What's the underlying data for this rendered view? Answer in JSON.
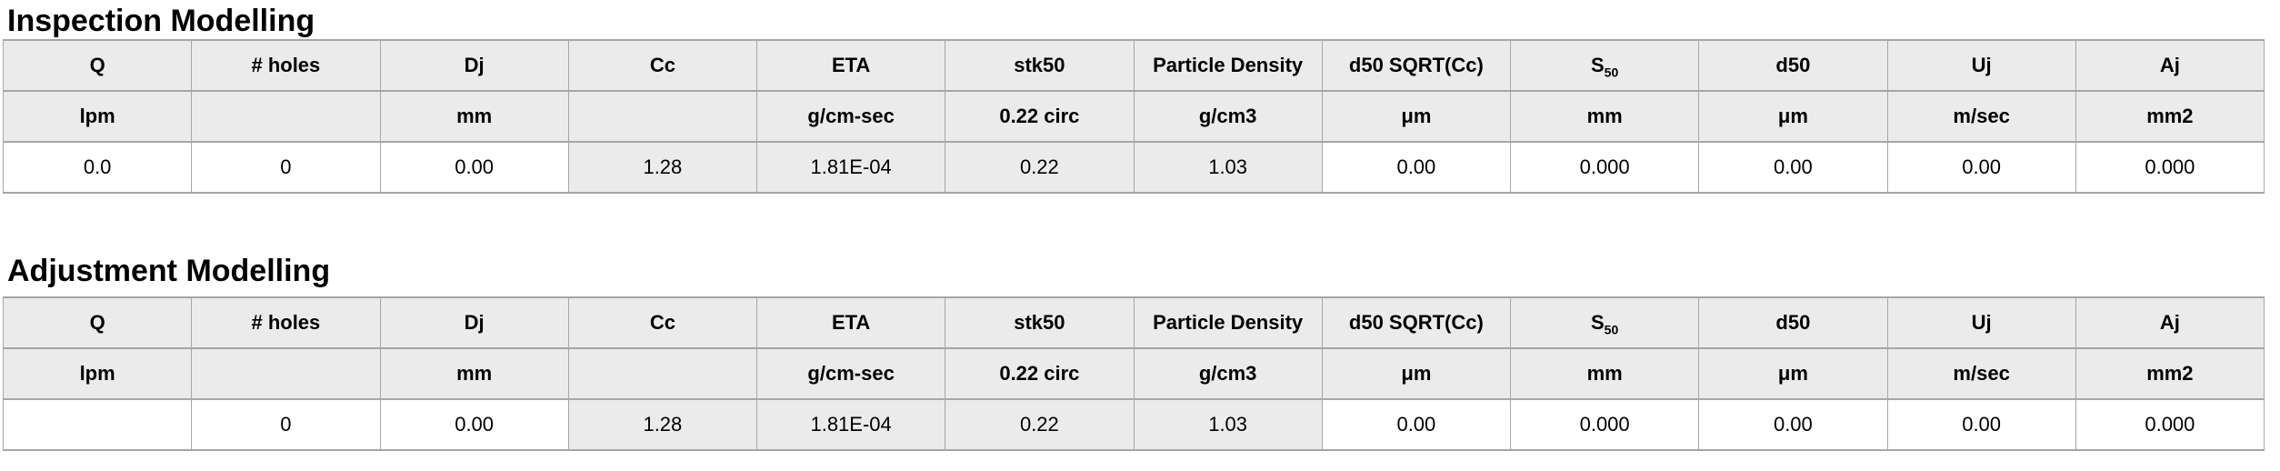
{
  "colors": {
    "cell_shaded_bg": "#ebebeb",
    "cell_white_bg": "#ffffff",
    "border": "#a6a6a6",
    "text": "#000000"
  },
  "tables": [
    {
      "title": "Inspection Modelling",
      "headers": [
        "Q",
        "# holes",
        "Dj",
        "Cc",
        "ETA",
        "stk50",
        "Particle Density",
        "d50 SQRT(Cc)",
        {
          "text": "S",
          "sub": "50"
        },
        "d50",
        "Uj",
        "Aj"
      ],
      "units": [
        "lpm",
        "",
        "mm",
        "",
        "g/cm-sec",
        "0.22 circ",
        "g/cm3",
        "μm",
        "mm",
        "μm",
        "m/sec",
        "mm2"
      ],
      "values": [
        "0.0",
        "0",
        "0.00",
        "1.28",
        "1.81E-04",
        "0.22",
        "1.03",
        "0.00",
        "0.000",
        "0.00",
        "0.00",
        "0.000"
      ]
    },
    {
      "title": "Adjustment Modelling",
      "headers": [
        "Q",
        "# holes",
        "Dj",
        "Cc",
        "ETA",
        "stk50",
        "Particle Density",
        "d50 SQRT(Cc)",
        {
          "text": "S",
          "sub": "50"
        },
        "d50",
        "Uj",
        "Aj"
      ],
      "units": [
        "lpm",
        "",
        "mm",
        "",
        "g/cm-sec",
        "0.22 circ",
        "g/cm3",
        "μm",
        "mm",
        "μm",
        "m/sec",
        "mm2"
      ],
      "values": [
        "",
        "0",
        "0.00",
        "1.28",
        "1.81E-04",
        "0.22",
        "1.03",
        "0.00",
        "0.000",
        "0.00",
        "0.00",
        "0.000"
      ]
    }
  ]
}
